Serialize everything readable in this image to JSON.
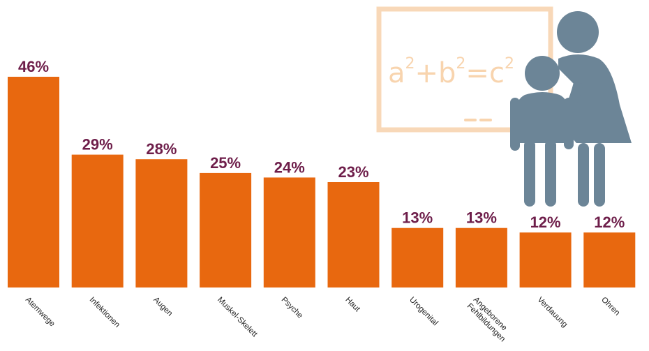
{
  "chart_data": {
    "type": "bar",
    "categories": [
      "Atemwege",
      "Infektionen",
      "Augen",
      "Muskel-Skelett",
      "Psyche",
      "Haut",
      "Urogenital",
      "Angeborene Fehlbildungen",
      "Verdauung",
      "Ohren"
    ],
    "values": [
      46,
      29,
      28,
      25,
      24,
      23,
      13,
      13,
      12,
      12
    ],
    "value_labels": [
      "46%",
      "29%",
      "28%",
      "25%",
      "24%",
      "23%",
      "13%",
      "13%",
      "12%",
      "12%"
    ],
    "unit": "%",
    "ylim": [
      0,
      46
    ],
    "grid": false,
    "colors": {
      "bar": "#E8680F",
      "value_label": "#6E1E4A"
    }
  },
  "illustration": {
    "board_formula": {
      "a": "a",
      "plus": "+",
      "b": "b",
      "eq": "=",
      "c": "c",
      "exp": "2"
    },
    "figure_color": "#6C8597",
    "icon": "teacher-child-icon"
  }
}
